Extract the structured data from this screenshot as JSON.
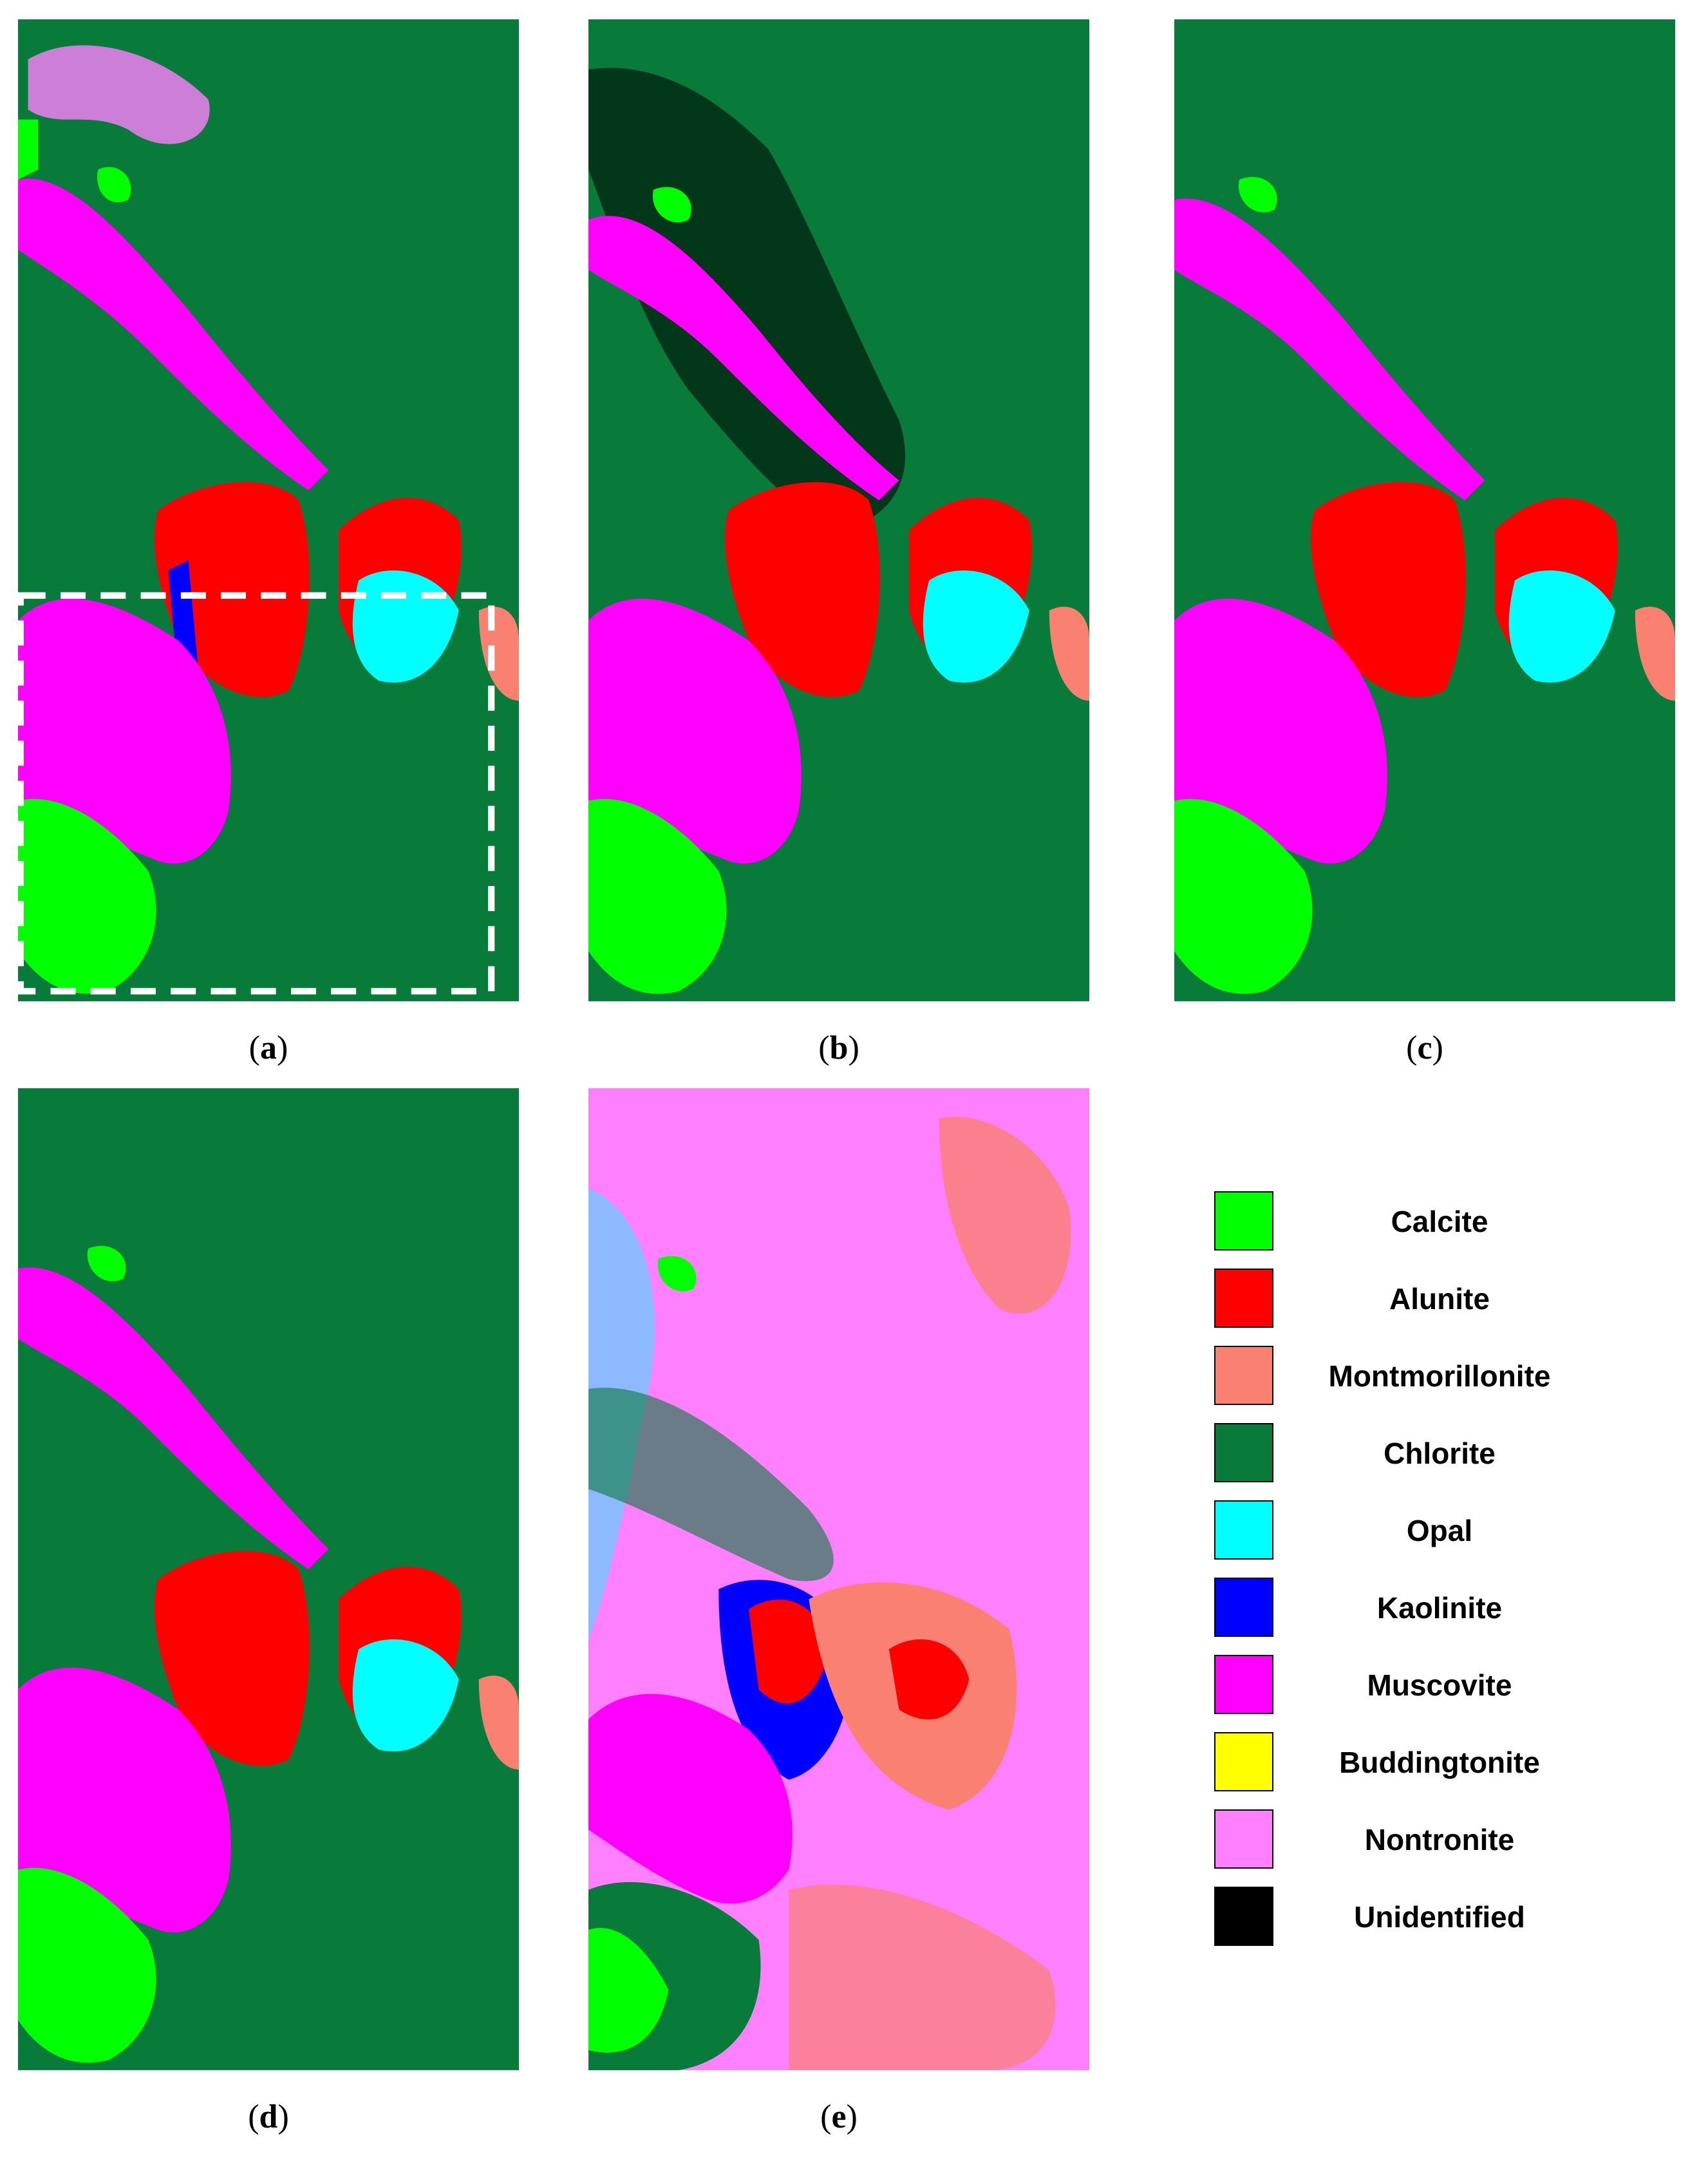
{
  "figure": {
    "panels": [
      {
        "id": "a",
        "caption_open": "(",
        "caption_letter": "a",
        "caption_close": ")",
        "has_dashed_box": true,
        "has_unidentified": false
      },
      {
        "id": "b",
        "caption_open": "(",
        "caption_letter": "b",
        "caption_close": ")",
        "has_dashed_box": false,
        "has_unidentified": true
      },
      {
        "id": "c",
        "caption_open": "(",
        "caption_letter": "c",
        "caption_close": ")",
        "has_dashed_box": false,
        "has_unidentified": false
      },
      {
        "id": "d",
        "caption_open": "(",
        "caption_letter": "d",
        "caption_close": ")",
        "has_dashed_box": false,
        "has_unidentified": false
      },
      {
        "id": "e",
        "caption_open": "(",
        "caption_letter": "e",
        "caption_close": ")",
        "has_dashed_box": false,
        "has_unidentified": false,
        "background_class": "Nontronite"
      }
    ]
  },
  "legend": {
    "items": [
      {
        "label": "Calcite",
        "color": "#00ff00"
      },
      {
        "label": "Alunite",
        "color": "#ff0000"
      },
      {
        "label": "Montmorillonite",
        "color": "#fa8072"
      },
      {
        "label": "Chlorite",
        "color": "#087a3a"
      },
      {
        "label": "Opal",
        "color": "#00ffff"
      },
      {
        "label": "Kaolinite",
        "color": "#0000ff"
      },
      {
        "label": "Muscovite",
        "color": "#ff00ff"
      },
      {
        "label": "Buddingtonite",
        "color": "#ffff00"
      },
      {
        "label": "Nontronite",
        "color": "#ff80ff"
      },
      {
        "label": "Unidentified",
        "color": "#000000"
      }
    ]
  }
}
